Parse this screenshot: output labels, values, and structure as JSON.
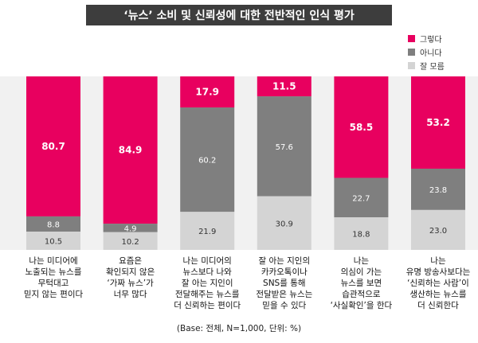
{
  "title": "‘뉴스’ 소비 및 신뢰성에 대한 전반적인 인식 평가",
  "footnote": "(Base: 전체, N=1,000, 단위: %)",
  "colors": {
    "yes": "#e8005f",
    "no": "#7f7f7f",
    "unsure": "#d4d4d4",
    "band": "#f1f1f1"
  },
  "chart_data": {
    "type": "bar",
    "stacked": true,
    "normalized_to": 100,
    "categories": [
      "나는 미디어에\n노출되는 뉴스를\n무턱대고\n믿지 않는 편이다",
      "요즘은\n확인되지 않은\n‘가짜 뉴스’가\n너무 많다",
      "나는 미디어의\n뉴스보다 나와\n잘 아는 지인이\n전달해주는 뉴스를\n더 신뢰하는 편이다",
      "잘 아는 지인의\n카카오톡이나\nSNS를 통해\n전달받은 뉴스는\n믿을 수 있다",
      "나는\n의심이 가는\n뉴스를 보면\n습관적으로\n‘사실확인’을 한다",
      "나는\n유명 방송사보다는\n‘신뢰하는 사람’이\n생산하는 뉴스를\n더 신뢰한다"
    ],
    "series": [
      {
        "name": "그렇다",
        "values": [
          80.7,
          84.9,
          17.9,
          11.5,
          58.5,
          53.2
        ]
      },
      {
        "name": "아니다",
        "values": [
          8.8,
          4.9,
          60.2,
          57.6,
          22.7,
          23.8
        ]
      },
      {
        "name": "잘 모름",
        "values": [
          10.5,
          10.2,
          21.9,
          30.9,
          18.8,
          23.0
        ]
      }
    ],
    "labels": [
      [
        "80.7",
        "84.9",
        "17.9",
        "11.5",
        "58.5",
        "53.2"
      ],
      [
        "8.8",
        "4.9",
        "60.2",
        "57.6",
        "22.7",
        "23.8"
      ],
      [
        "10.5",
        "10.2",
        "21.9",
        "30.9",
        "18.8",
        "23.0"
      ]
    ],
    "legend_position": "top-right",
    "grid": false
  }
}
